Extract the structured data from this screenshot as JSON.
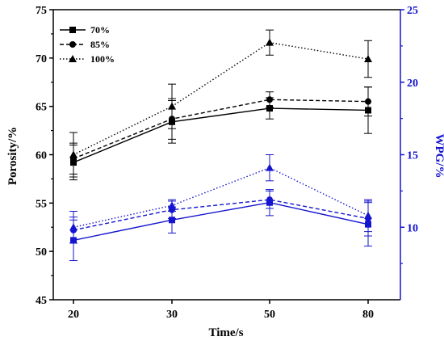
{
  "chart_data": {
    "type": "line",
    "categories": [
      "20",
      "30",
      "50",
      "80"
    ],
    "xlabel": "Time/s",
    "ylabel_left": "Porosity/%",
    "ylabel_right": "WPG/%",
    "ylim_left": [
      45,
      75
    ],
    "yticks_left": [
      "45",
      "50",
      "55",
      "60",
      "65",
      "70",
      "75"
    ],
    "ylim_right": [
      5,
      25
    ],
    "yticks_right": [
      "10",
      "15",
      "20",
      "25"
    ],
    "legend_position": "top-left",
    "colors": {
      "left": "#000000",
      "right": "#1515d0"
    },
    "series": [
      {
        "name": "70%",
        "axis": "left",
        "style": "solid",
        "marker": "square",
        "values": [
          59.2,
          63.4,
          64.8,
          64.6
        ],
        "errors": [
          1.8,
          2.2,
          1.1,
          2.4
        ]
      },
      {
        "name": "85%",
        "axis": "left",
        "style": "dashed",
        "marker": "circle",
        "values": [
          59.6,
          63.7,
          65.7,
          65.5
        ],
        "errors": [
          1.6,
          2.1,
          0.8,
          1.5
        ]
      },
      {
        "name": "100%",
        "axis": "left",
        "style": "dotted",
        "marker": "triangle",
        "values": [
          60.0,
          65.0,
          71.6,
          69.9
        ],
        "errors": [
          2.3,
          2.3,
          1.3,
          1.9
        ]
      },
      {
        "axis": "right",
        "style": "solid",
        "marker": "square",
        "values": [
          9.1,
          10.5,
          11.7,
          10.2
        ],
        "errors": [
          1.4,
          0.9,
          0.9,
          1.5
        ]
      },
      {
        "axis": "right",
        "style": "dashed",
        "marker": "circle",
        "values": [
          9.8,
          11.2,
          11.9,
          10.6
        ],
        "errors": [
          0.9,
          0.6,
          0.6,
          1.2
        ]
      },
      {
        "axis": "right",
        "style": "dotted",
        "marker": "triangle",
        "values": [
          10.0,
          11.5,
          14.1,
          10.8
        ],
        "errors": [
          1.1,
          0.4,
          0.9,
          1.1
        ]
      }
    ]
  }
}
